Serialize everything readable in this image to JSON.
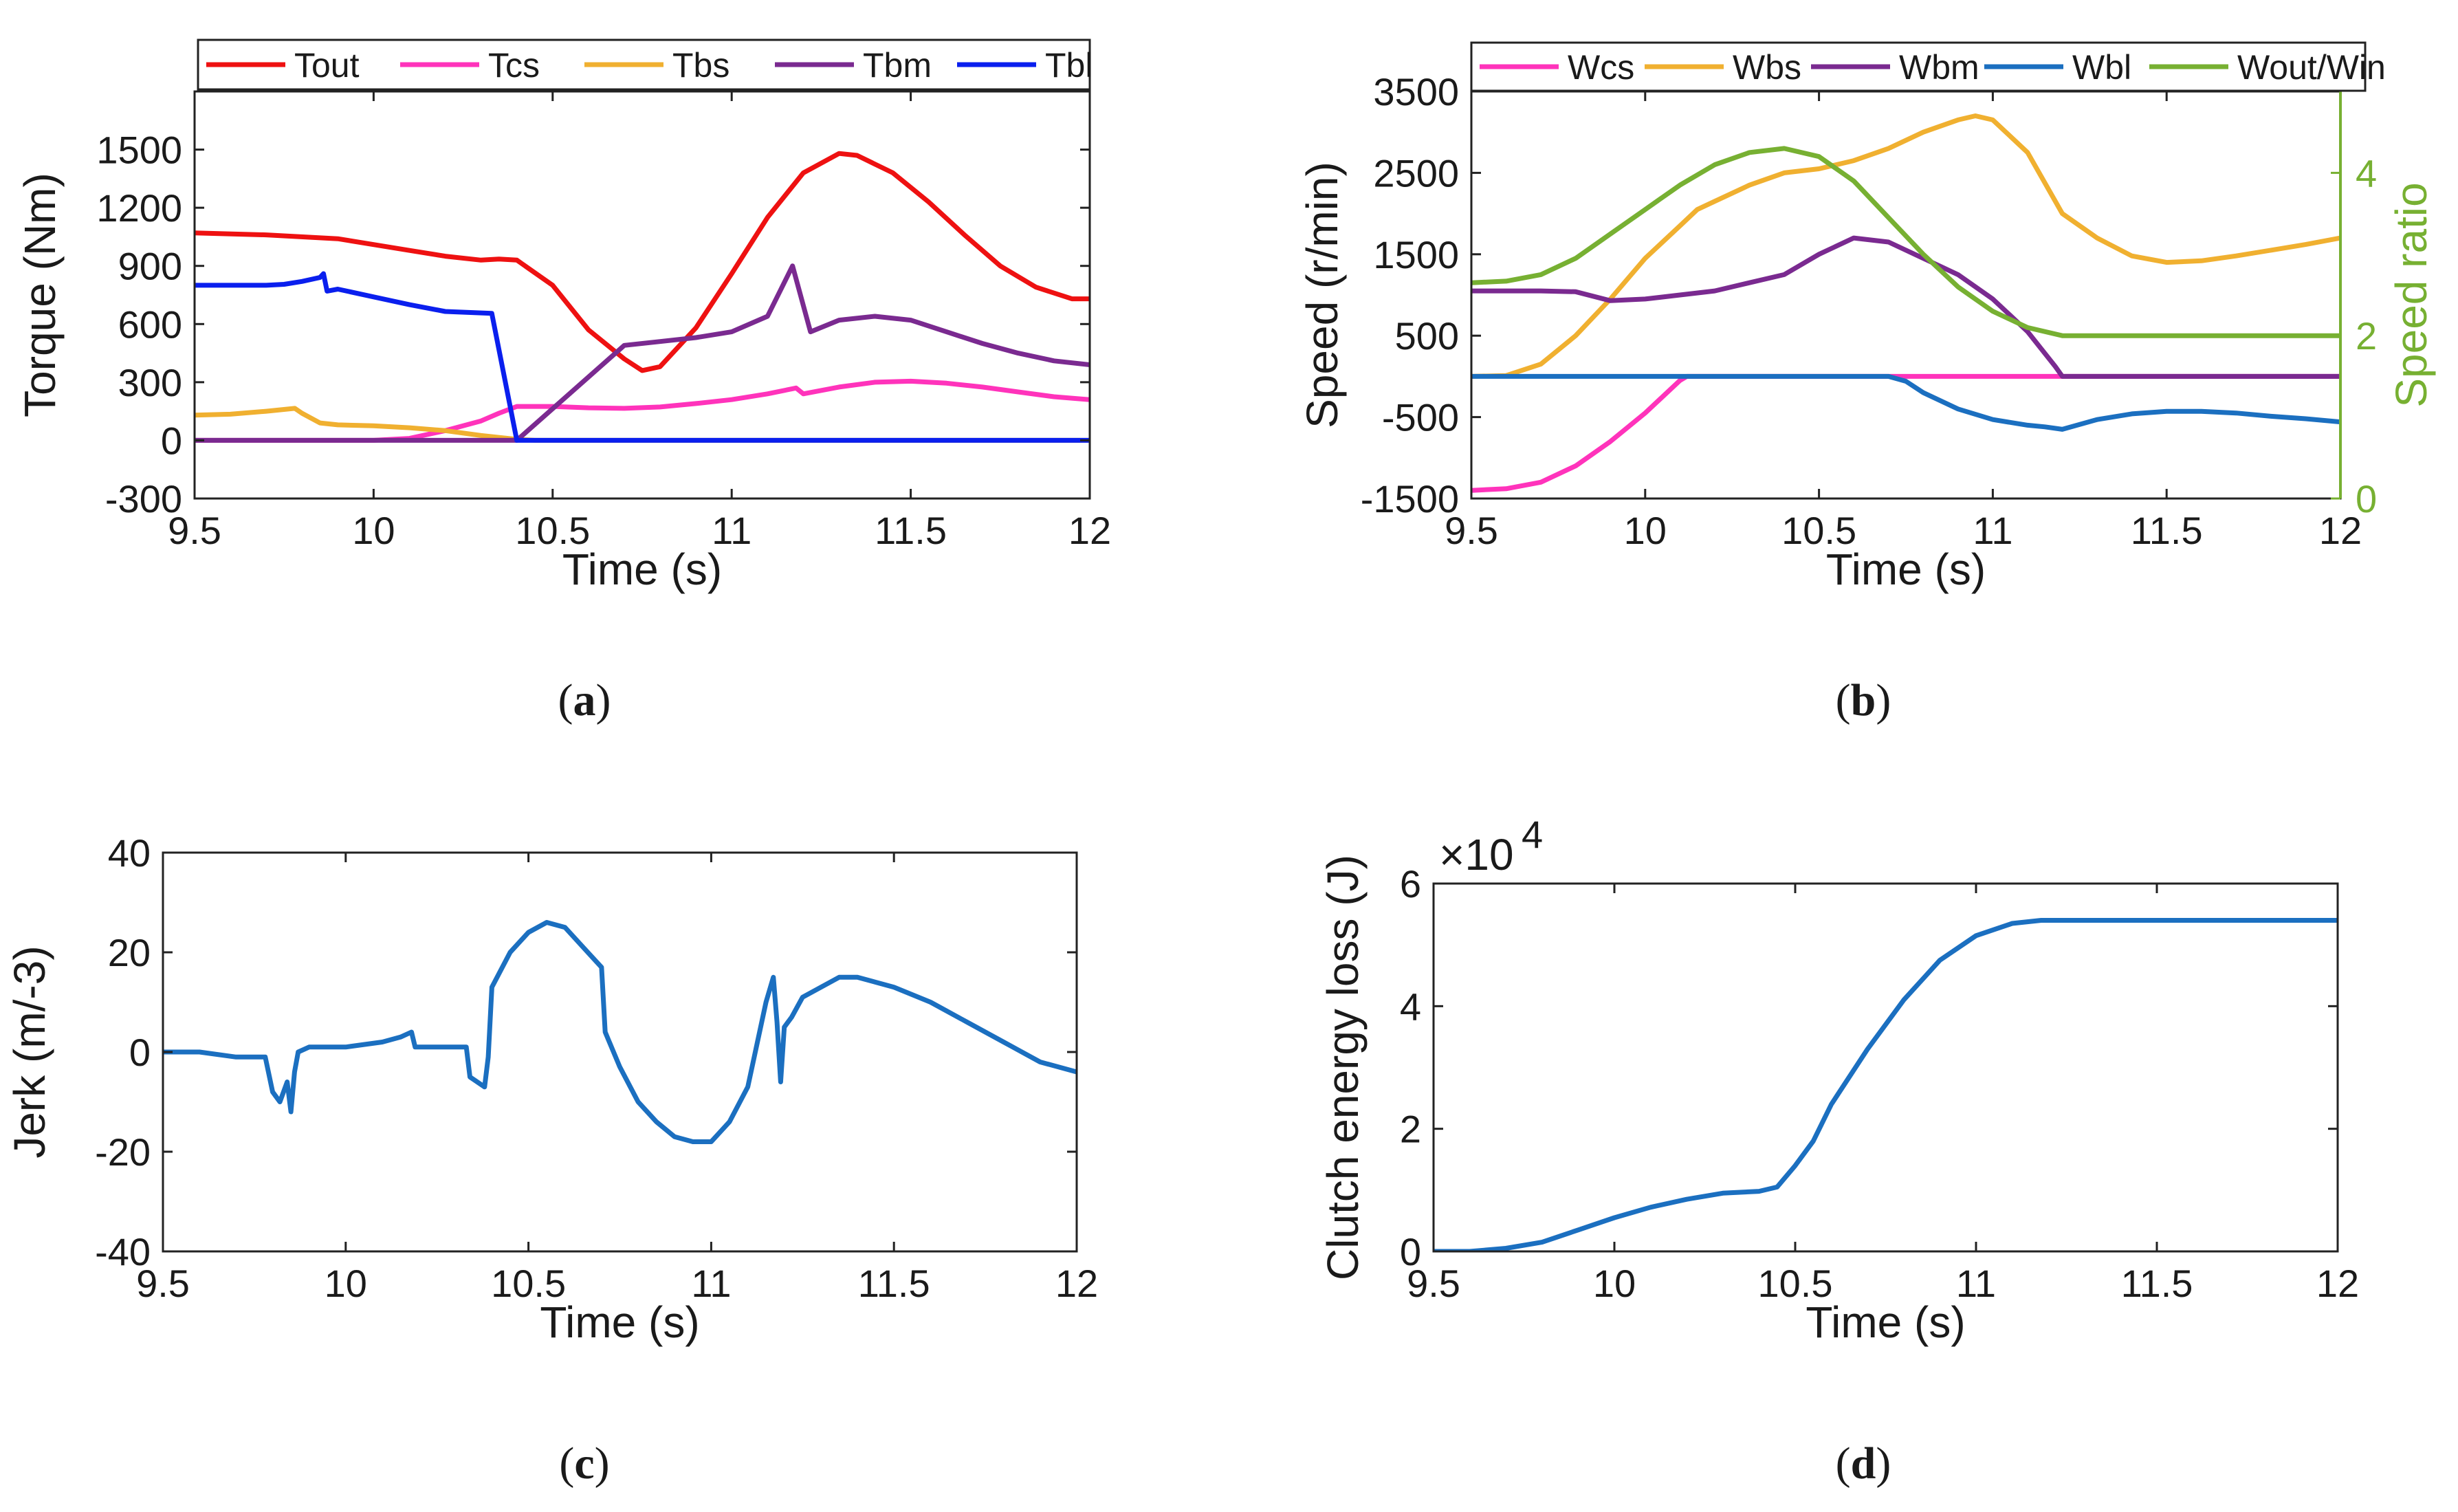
{
  "chart_data": [
    {
      "id": "a",
      "type": "line",
      "caption_letter": "a",
      "xlabel": "Time (s)",
      "ylabel": "Torque (Nm)",
      "xlim": [
        9.5,
        12
      ],
      "ylim": [
        -300,
        1800
      ],
      "xticks": [
        9.5,
        10,
        10.5,
        11,
        11.5,
        12
      ],
      "xtick_labels": [
        "9.5",
        "10",
        "10.5",
        "11",
        "11.5",
        "12"
      ],
      "yticks": [
        -300,
        0,
        300,
        600,
        900,
        1200,
        1500
      ],
      "ytick_labels": [
        "-300",
        "0",
        "300",
        "600",
        "900",
        "1200",
        "1500"
      ],
      "legend_position": "top",
      "series": [
        {
          "name": "Tout",
          "color": "#ee1111",
          "x": [
            9.5,
            9.7,
            9.9,
            10.1,
            10.2,
            10.3,
            10.35,
            10.4,
            10.5,
            10.6,
            10.7,
            10.75,
            10.8,
            10.9,
            11.0,
            11.1,
            11.2,
            11.3,
            11.35,
            11.45,
            11.55,
            11.65,
            11.75,
            11.85,
            11.95,
            12.0
          ],
          "y": [
            1070,
            1060,
            1040,
            980,
            950,
            930,
            935,
            930,
            800,
            570,
            420,
            360,
            380,
            580,
            860,
            1150,
            1380,
            1480,
            1470,
            1380,
            1230,
            1060,
            900,
            790,
            730,
            730
          ]
        },
        {
          "name": "Tcs",
          "color": "#ff33bb",
          "x": [
            9.5,
            10.0,
            10.1,
            10.2,
            10.3,
            10.35,
            10.4,
            10.5,
            10.6,
            10.7,
            10.8,
            10.9,
            11.0,
            11.1,
            11.18,
            11.2,
            11.3,
            11.4,
            11.5,
            11.6,
            11.7,
            11.8,
            11.9,
            12.0
          ],
          "y": [
            0,
            0,
            10,
            50,
            100,
            140,
            175,
            175,
            168,
            165,
            172,
            190,
            210,
            240,
            270,
            240,
            275,
            300,
            305,
            295,
            275,
            250,
            225,
            210
          ]
        },
        {
          "name": "Tbs",
          "color": "#f0b030",
          "x": [
            9.5,
            9.6,
            9.7,
            9.78,
            9.8,
            9.85,
            9.9,
            10.0,
            10.1,
            10.2,
            10.3,
            10.4,
            10.45,
            12.0
          ],
          "y": [
            130,
            135,
            150,
            165,
            140,
            90,
            80,
            75,
            65,
            50,
            25,
            5,
            0,
            0
          ]
        },
        {
          "name": "Tbm",
          "color": "#7a2a90",
          "x": [
            9.5,
            10.4,
            10.7,
            10.8,
            10.9,
            11.0,
            11.1,
            11.17,
            11.22,
            11.3,
            11.4,
            11.5,
            11.6,
            11.7,
            11.8,
            11.9,
            12.0
          ],
          "y": [
            0,
            0,
            490,
            510,
            530,
            560,
            640,
            900,
            560,
            620,
            640,
            620,
            560,
            500,
            450,
            410,
            390
          ]
        },
        {
          "name": "Tbl",
          "color": "#0a1fee",
          "x": [
            9.5,
            9.6,
            9.7,
            9.75,
            9.8,
            9.85,
            9.86,
            9.87,
            9.9,
            10.0,
            10.1,
            10.2,
            10.33,
            10.4,
            10.41,
            12.0
          ],
          "y": [
            800,
            800,
            800,
            805,
            820,
            840,
            860,
            770,
            780,
            740,
            700,
            665,
            655,
            0,
            0,
            0
          ]
        }
      ]
    },
    {
      "id": "b",
      "type": "line",
      "caption_letter": "b",
      "xlabel": "Time (s)",
      "ylabel": "Speed (r/min)",
      "y2label": "Speed ratio",
      "y2color": "#77b032",
      "xlim": [
        9.5,
        12
      ],
      "ylim": [
        -1500,
        3500
      ],
      "y2lim": [
        0,
        5
      ],
      "xticks": [
        9.5,
        10,
        10.5,
        11,
        11.5,
        12
      ],
      "xtick_labels": [
        "9.5",
        "10",
        "10.5",
        "11",
        "11.5",
        "12"
      ],
      "yticks": [
        -1500,
        -500,
        500,
        1500,
        2500,
        3500
      ],
      "ytick_labels": [
        "-1500",
        "-500",
        "500",
        "1500",
        "2500",
        "3500"
      ],
      "y2ticks": [
        0,
        2,
        4
      ],
      "y2tick_labels": [
        "0",
        "2",
        "4"
      ],
      "legend_position": "top",
      "series": [
        {
          "name": "Wcs",
          "color": "#ff33bb",
          "axis": "left",
          "x": [
            9.5,
            9.6,
            9.7,
            9.8,
            9.9,
            10.0,
            10.1,
            10.12,
            12.0
          ],
          "y": [
            -1400,
            -1380,
            -1300,
            -1100,
            -800,
            -450,
            -50,
            0,
            0
          ]
        },
        {
          "name": "Wbs",
          "color": "#f0b030",
          "axis": "left",
          "x": [
            9.5,
            9.6,
            9.7,
            9.8,
            9.9,
            10.0,
            10.1,
            10.15,
            10.2,
            10.3,
            10.4,
            10.5,
            10.6,
            10.7,
            10.8,
            10.9,
            10.95,
            11.0,
            11.1,
            11.2,
            11.3,
            11.4,
            11.5,
            11.6,
            11.7,
            11.8,
            11.9,
            12.0
          ],
          "y": [
            0,
            10,
            150,
            500,
            950,
            1450,
            1850,
            2050,
            2150,
            2350,
            2500,
            2550,
            2650,
            2800,
            3000,
            3150,
            3200,
            3150,
            2750,
            2000,
            1700,
            1480,
            1400,
            1420,
            1480,
            1550,
            1620,
            1700
          ]
        },
        {
          "name": "Wbm",
          "color": "#7a2a90",
          "axis": "left",
          "x": [
            9.5,
            9.7,
            9.8,
            9.9,
            10.0,
            10.1,
            10.2,
            10.3,
            10.4,
            10.5,
            10.6,
            10.7,
            10.8,
            10.9,
            11.0,
            11.1,
            11.18,
            11.2,
            12.0
          ],
          "y": [
            1050,
            1050,
            1040,
            930,
            950,
            1000,
            1050,
            1150,
            1250,
            1500,
            1700,
            1650,
            1450,
            1250,
            950,
            550,
            120,
            0,
            0
          ]
        },
        {
          "name": "Wbl",
          "color": "#1b6fc0",
          "axis": "left",
          "x": [
            9.5,
            10.7,
            10.75,
            10.8,
            10.9,
            11.0,
            11.1,
            11.15,
            11.2,
            11.3,
            11.4,
            11.5,
            11.6,
            11.7,
            11.8,
            11.9,
            12.0
          ],
          "y": [
            0,
            0,
            -60,
            -200,
            -400,
            -530,
            -600,
            -620,
            -650,
            -530,
            -460,
            -430,
            -430,
            -450,
            -490,
            -520,
            -560
          ]
        },
        {
          "name": "Wout/Win",
          "color": "#77b032",
          "axis": "right",
          "x": [
            9.5,
            9.6,
            9.7,
            9.8,
            9.9,
            10.0,
            10.1,
            10.2,
            10.3,
            10.4,
            10.5,
            10.6,
            10.7,
            10.8,
            10.9,
            11.0,
            11.1,
            11.2,
            11.3,
            11.5,
            12.0
          ],
          "y": [
            2.65,
            2.67,
            2.75,
            2.95,
            3.25,
            3.55,
            3.85,
            4.1,
            4.25,
            4.3,
            4.2,
            3.9,
            3.45,
            3.0,
            2.6,
            2.3,
            2.1,
            2.0,
            2.0,
            2.0,
            2.0
          ]
        }
      ]
    },
    {
      "id": "c",
      "type": "line",
      "caption_letter": "c",
      "xlabel": "Time (s)",
      "ylabel": "Jerk (m/-3)",
      "xlim": [
        9.5,
        12
      ],
      "ylim": [
        -40,
        40
      ],
      "xticks": [
        9.5,
        10,
        10.5,
        11,
        11.5,
        12
      ],
      "xtick_labels": [
        "9.5",
        "10",
        "10.5",
        "11",
        "11.5",
        "12"
      ],
      "yticks": [
        -40,
        -20,
        0,
        20,
        40
      ],
      "ytick_labels": [
        "-40",
        "-20",
        "0",
        "20",
        "40"
      ],
      "series": [
        {
          "name": "Jerk",
          "color": "#1b6fc0",
          "x": [
            9.5,
            9.6,
            9.7,
            9.78,
            9.8,
            9.82,
            9.84,
            9.85,
            9.86,
            9.87,
            9.9,
            10.0,
            10.1,
            10.15,
            10.18,
            10.19,
            10.2,
            10.3,
            10.33,
            10.34,
            10.38,
            10.39,
            10.4,
            10.45,
            10.5,
            10.55,
            10.6,
            10.65,
            10.7,
            10.71,
            10.75,
            10.8,
            10.85,
            10.9,
            10.95,
            11.0,
            11.05,
            11.1,
            11.15,
            11.17,
            11.18,
            11.19,
            11.2,
            11.22,
            11.25,
            11.3,
            11.35,
            11.4,
            11.45,
            11.5,
            11.6,
            11.7,
            11.8,
            11.9,
            12.0
          ],
          "y": [
            0,
            0,
            -1,
            -1,
            -8,
            -10,
            -6,
            -12,
            -4,
            0,
            1,
            1,
            2,
            3,
            4,
            1,
            1,
            1,
            1,
            -5,
            -7,
            -1,
            13,
            20,
            24,
            26,
            25,
            21,
            17,
            4,
            -3,
            -10,
            -14,
            -17,
            -18,
            -18,
            -14,
            -7,
            10,
            15,
            6,
            -6,
            5,
            7,
            11,
            13,
            15,
            15,
            14,
            13,
            10,
            6,
            2,
            -2,
            -4
          ]
        }
      ]
    },
    {
      "id": "d",
      "type": "line",
      "caption_letter": "d",
      "xlabel": "Time (s)",
      "ylabel": "Clutch energy loss (J)",
      "exponent_label": "×10",
      "exponent_sup": "4",
      "xlim": [
        9.5,
        12
      ],
      "ylim": [
        0,
        6
      ],
      "xticks": [
        9.5,
        10,
        10.5,
        11,
        11.5,
        12
      ],
      "xtick_labels": [
        "9.5",
        "10",
        "10.5",
        "11",
        "11.5",
        "12"
      ],
      "yticks": [
        0,
        2,
        4,
        6
      ],
      "ytick_labels": [
        "0",
        "2",
        "4",
        "6"
      ],
      "series": [
        {
          "name": "Energy loss",
          "color": "#1b6fc0",
          "x": [
            9.5,
            9.6,
            9.7,
            9.8,
            9.9,
            10.0,
            10.1,
            10.2,
            10.3,
            10.4,
            10.45,
            10.5,
            10.55,
            10.6,
            10.7,
            10.8,
            10.9,
            11.0,
            11.1,
            11.18,
            11.2,
            12.0
          ],
          "y": [
            0,
            0,
            0.05,
            0.15,
            0.35,
            0.55,
            0.72,
            0.85,
            0.95,
            0.98,
            1.05,
            1.4,
            1.8,
            2.4,
            3.3,
            4.1,
            4.75,
            5.15,
            5.35,
            5.4,
            5.4,
            5.4
          ]
        }
      ]
    }
  ]
}
